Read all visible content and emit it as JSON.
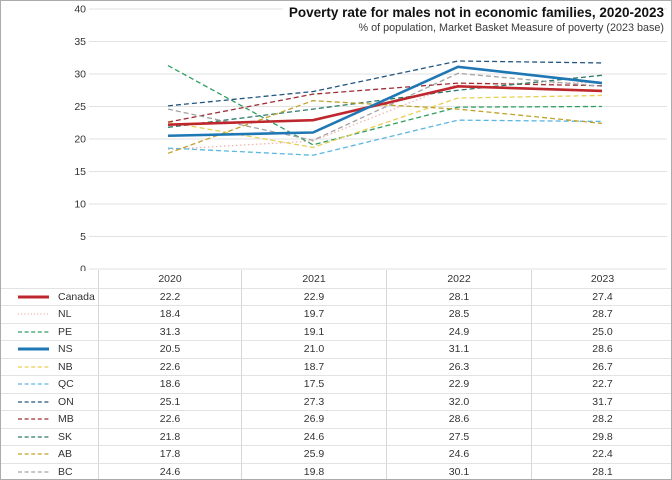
{
  "header": {
    "title": "Poverty rate for males not in economic families, 2020-2023",
    "subtitle": "% of population, Market Basket Measure of poverty (2023 base)"
  },
  "table": {
    "year_headers": [
      "2020",
      "2021",
      "2022",
      "2023"
    ]
  },
  "chart_data": {
    "type": "line",
    "title": "Poverty rate for males not in economic families, 2020-2023",
    "subtitle": "% of population, Market Basket Measure of poverty (2023 base)",
    "categories": [
      "2020",
      "2021",
      "2022",
      "2023"
    ],
    "xlabel": "",
    "ylabel": "% of population",
    "ylim": [
      0,
      40
    ],
    "yticks": [
      0,
      5,
      10,
      15,
      20,
      25,
      30,
      35,
      40
    ],
    "grid": "horizontal",
    "gridline_color": "#e2e2e2",
    "legend_position": "table-below",
    "series": [
      {
        "name": "Canada",
        "color": "#bf272e",
        "line_style": "solid",
        "line_width": 2.6,
        "values": [
          22.2,
          22.9,
          28.1,
          27.4
        ]
      },
      {
        "name": "NL",
        "color": "#f0bab1",
        "line_style": "dotted",
        "line_width": 1.3,
        "values": [
          18.4,
          19.7,
          28.5,
          28.7
        ]
      },
      {
        "name": "PE",
        "color": "#2f9e62",
        "line_style": "dashed",
        "line_width": 1.3,
        "values": [
          31.3,
          19.1,
          24.9,
          25.0
        ]
      },
      {
        "name": "NS",
        "color": "#1f77b4",
        "line_style": "solid",
        "line_width": 2.6,
        "values": [
          20.5,
          21.0,
          31.1,
          28.6
        ]
      },
      {
        "name": "NB",
        "color": "#e9cf55",
        "line_style": "dashed",
        "line_width": 1.3,
        "values": [
          22.6,
          18.7,
          26.3,
          26.7
        ]
      },
      {
        "name": "QC",
        "color": "#5ab7e0",
        "line_style": "dashed",
        "line_width": 1.3,
        "values": [
          18.6,
          17.5,
          22.9,
          22.7
        ]
      },
      {
        "name": "ON",
        "color": "#24567f",
        "line_style": "dashed",
        "line_width": 1.3,
        "values": [
          25.1,
          27.3,
          32.0,
          31.7
        ]
      },
      {
        "name": "MB",
        "color": "#9d2f35",
        "line_style": "dashed",
        "line_width": 1.3,
        "values": [
          22.6,
          26.9,
          28.6,
          28.2
        ]
      },
      {
        "name": "SK",
        "color": "#2a7a68",
        "line_style": "dashed",
        "line_width": 1.3,
        "values": [
          21.8,
          24.6,
          27.5,
          29.8
        ]
      },
      {
        "name": "AB",
        "color": "#c2a22b",
        "line_style": "dashed",
        "line_width": 1.3,
        "values": [
          17.8,
          25.9,
          24.6,
          22.4
        ]
      },
      {
        "name": "BC",
        "color": "#a3a3a3",
        "line_style": "dashed",
        "line_width": 1.3,
        "values": [
          24.6,
          19.8,
          30.1,
          28.1
        ]
      }
    ]
  }
}
